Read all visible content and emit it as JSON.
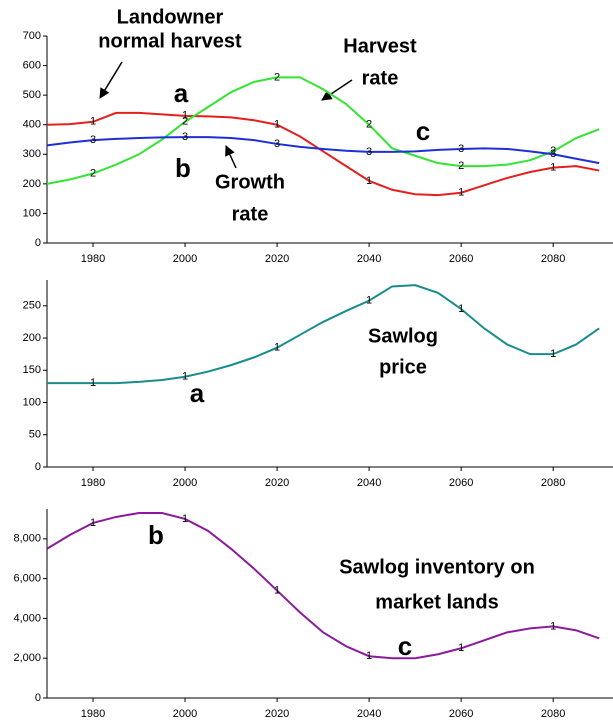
{
  "chart_data": [
    {
      "type": "line",
      "x": [
        1970,
        1975,
        1980,
        1985,
        1990,
        1995,
        2000,
        2005,
        2010,
        2015,
        2020,
        2025,
        2030,
        2035,
        2040,
        2045,
        2050,
        2055,
        2060,
        2065,
        2070,
        2075,
        2080,
        2085,
        2090
      ],
      "xlim": [
        1970,
        2093
      ],
      "xticks": [
        1980,
        2000,
        2020,
        2040,
        2060,
        2080
      ],
      "ylim": [
        0,
        700
      ],
      "yticks": [
        0,
        100,
        200,
        300,
        400,
        500,
        600,
        700
      ],
      "series": [
        {
          "marker": "1",
          "color": "#e3201e",
          "values": [
            400,
            402,
            410,
            440,
            440,
            435,
            430,
            428,
            425,
            415,
            400,
            360,
            310,
            260,
            210,
            180,
            165,
            162,
            170,
            195,
            220,
            240,
            255,
            260,
            245
          ]
        },
        {
          "marker": "2",
          "color": "#33e433",
          "values": [
            200,
            215,
            235,
            265,
            300,
            350,
            410,
            460,
            510,
            545,
            560,
            560,
            520,
            470,
            400,
            320,
            295,
            270,
            260,
            260,
            265,
            280,
            310,
            355,
            385
          ]
        },
        {
          "marker": "3",
          "color": "#1f2fd6",
          "values": [
            330,
            340,
            348,
            352,
            355,
            357,
            358,
            358,
            355,
            348,
            335,
            325,
            318,
            312,
            308,
            308,
            310,
            315,
            318,
            320,
            318,
            310,
            300,
            285,
            270
          ]
        }
      ],
      "annotations": [
        {
          "lines": [
            "Landowner",
            "normal harvest"
          ]
        },
        {
          "lines": [
            "Harvest",
            "rate"
          ]
        },
        {
          "lines": [
            "Growth",
            "rate"
          ]
        },
        {
          "lines": [
            "a"
          ]
        },
        {
          "lines": [
            "b"
          ]
        },
        {
          "lines": [
            "c"
          ]
        }
      ]
    },
    {
      "type": "line",
      "x": [
        1970,
        1975,
        1980,
        1985,
        1990,
        1995,
        2000,
        2005,
        2010,
        2015,
        2020,
        2025,
        2030,
        2035,
        2040,
        2045,
        2050,
        2055,
        2060,
        2065,
        2070,
        2075,
        2080,
        2085,
        2090
      ],
      "xlim": [
        1970,
        2093
      ],
      "xticks": [
        1980,
        2000,
        2020,
        2040,
        2060,
        2080
      ],
      "ylim": [
        0,
        290
      ],
      "yticks": [
        0,
        50,
        100,
        150,
        200,
        250
      ],
      "series": [
        {
          "marker": "1",
          "color": "#1a8c8c",
          "values": [
            130,
            130,
            130,
            130,
            132,
            135,
            140,
            148,
            158,
            170,
            185,
            205,
            225,
            242,
            258,
            280,
            282,
            270,
            245,
            215,
            190,
            175,
            175,
            190,
            215
          ]
        }
      ],
      "annotations": [
        {
          "lines": [
            "Sawlog",
            "price"
          ]
        },
        {
          "lines": [
            "a"
          ]
        }
      ]
    },
    {
      "type": "line",
      "x": [
        1970,
        1975,
        1980,
        1985,
        1990,
        1995,
        2000,
        2005,
        2010,
        2015,
        2020,
        2025,
        2030,
        2035,
        2040,
        2045,
        2050,
        2055,
        2060,
        2065,
        2070,
        2075,
        2080,
        2085,
        2090
      ],
      "xlim": [
        1970,
        2093
      ],
      "xticks": [
        1980,
        2000,
        2020,
        2040,
        2060,
        2080
      ],
      "ylim": [
        0,
        9500
      ],
      "yticks": [
        0,
        {
          "value": 2000,
          "label": "2,000"
        },
        {
          "value": 4000,
          "label": "4,000"
        },
        {
          "value": 6000,
          "label": "6,000"
        },
        {
          "value": 8000,
          "label": "8,000"
        }
      ],
      "series": [
        {
          "marker": "1",
          "color": "#8c1a9c",
          "values": [
            7500,
            8200,
            8800,
            9100,
            9300,
            9300,
            9000,
            8400,
            7500,
            6500,
            5400,
            4300,
            3300,
            2600,
            2100,
            2000,
            2000,
            2200,
            2500,
            2900,
            3300,
            3500,
            3600,
            3400,
            3000
          ]
        }
      ],
      "annotations": [
        {
          "lines": [
            "Sawlog inventory on",
            "market lands"
          ]
        },
        {
          "lines": [
            "b"
          ]
        },
        {
          "lines": [
            "c"
          ]
        }
      ]
    }
  ]
}
